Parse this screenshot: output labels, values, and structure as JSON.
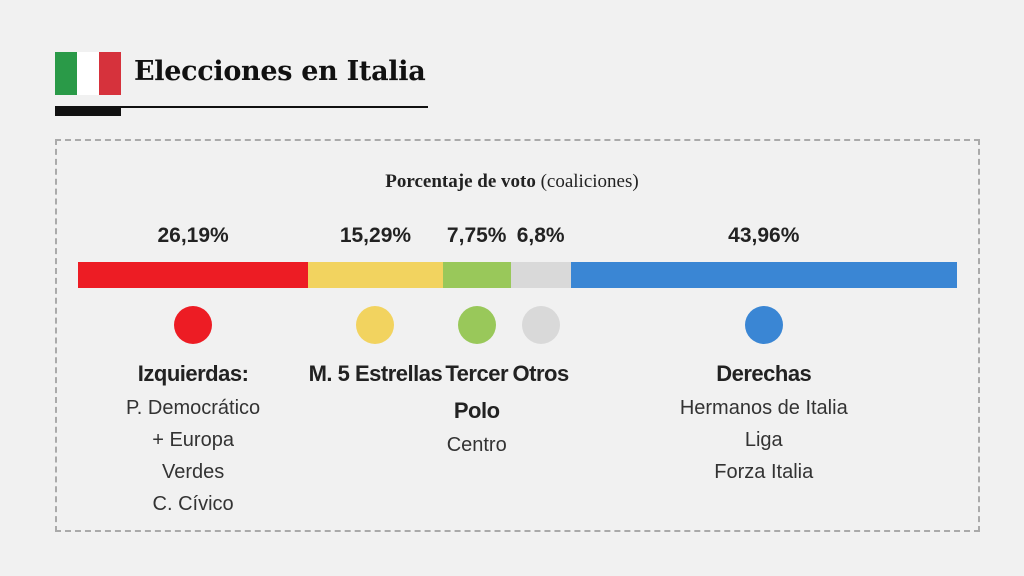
{
  "chart_data": {
    "type": "stacked_bar",
    "title": "Elecciones en Italia",
    "subtitle": "Porcentaje de voto",
    "subtitle_note": "(coaliciones)",
    "series": [
      {
        "name": "Izquierdas:",
        "color": "#ed1c24",
        "values": [
          26.19
        ],
        "value_labels": [
          "26,19%"
        ],
        "members": [
          "P. Democrático",
          "+ Europa",
          "Verdes",
          "C. Cívico"
        ]
      },
      {
        "name": "M. 5 Estrellas",
        "color": "#f2d35f",
        "values": [
          15.29
        ],
        "value_labels": [
          "15,29%"
        ],
        "members": []
      },
      {
        "name": "Tercer Polo",
        "color": "#99c85a",
        "values": [
          7.75
        ],
        "value_labels": [
          "7,75%"
        ],
        "members": [
          "Centro"
        ]
      },
      {
        "name": "Otros",
        "color": "#d9d9d9",
        "values": [
          6.8
        ],
        "value_labels": [
          "6,8%"
        ],
        "members": []
      },
      {
        "name": "Derechas",
        "color": "#3a86d4",
        "values": [
          43.96
        ],
        "value_labels": [
          "43,96%"
        ],
        "members": [
          "Hermanos de Italia",
          "Liga",
          "Forza Italia"
        ]
      }
    ]
  }
}
